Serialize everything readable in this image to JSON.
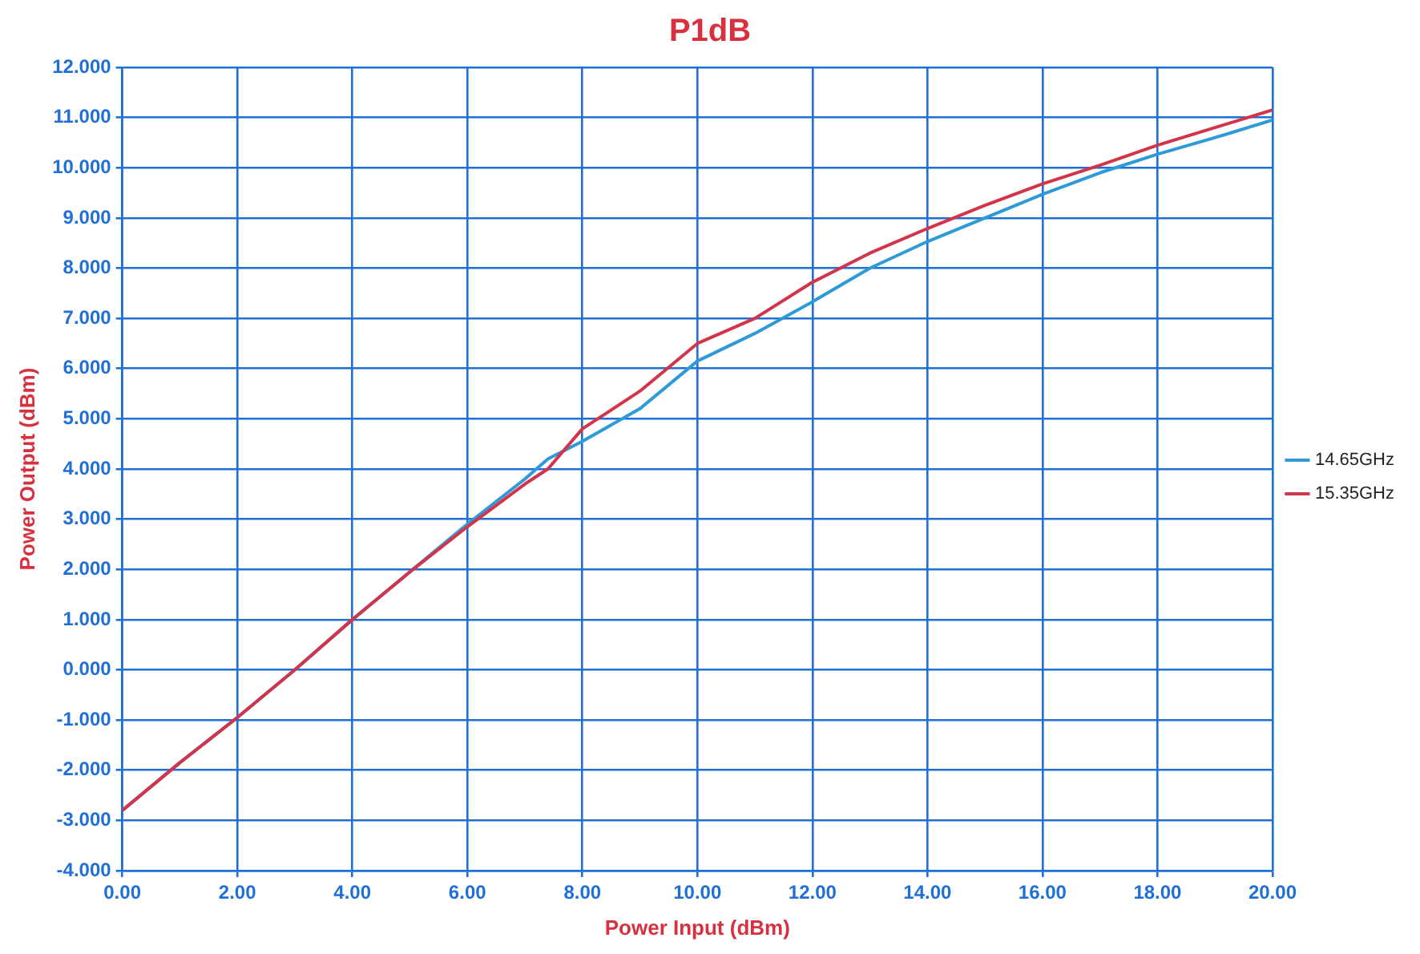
{
  "chart_data": {
    "type": "line",
    "title": "P1dB",
    "xlabel": "Power Input (dBm)",
    "ylabel": "Power Output (dBm)",
    "x": [
      0,
      1,
      2,
      3,
      4,
      5,
      6,
      7,
      7.4,
      8,
      9,
      10,
      11,
      12,
      13,
      14,
      15,
      16,
      17,
      18,
      19,
      20
    ],
    "series": [
      {
        "name": "14.65GHz",
        "color": "#2e9ad8",
        "values": [
          -2.8,
          -1.85,
          -0.95,
          0,
          1.0,
          1.95,
          2.9,
          3.8,
          4.2,
          4.55,
          5.2,
          6.15,
          6.7,
          7.33,
          8.0,
          8.53,
          9.0,
          9.47,
          9.9,
          10.27,
          10.6,
          10.95
        ]
      },
      {
        "name": "15.35GHz",
        "color": "#d2344a",
        "values": [
          -2.8,
          -1.85,
          -0.95,
          0,
          1.0,
          1.95,
          2.85,
          3.7,
          4.0,
          4.8,
          5.55,
          6.5,
          7.0,
          7.72,
          8.3,
          8.79,
          9.25,
          9.68,
          10.05,
          10.45,
          10.8,
          11.15
        ]
      }
    ],
    "xlim": [
      0,
      20
    ],
    "xticks": [
      {
        "value": 0,
        "label": "0.00"
      },
      {
        "value": 2,
        "label": "2.00"
      },
      {
        "value": 4,
        "label": "4.00"
      },
      {
        "value": 6,
        "label": "6.00"
      },
      {
        "value": 8,
        "label": "8.00"
      },
      {
        "value": 10,
        "label": "10.00"
      },
      {
        "value": 12,
        "label": "12.00"
      },
      {
        "value": 14,
        "label": "14.00"
      },
      {
        "value": 16,
        "label": "16.00"
      },
      {
        "value": 18,
        "label": "18.00"
      },
      {
        "value": 20,
        "label": "20.00"
      }
    ],
    "ylim": [
      -4,
      12
    ],
    "yticks": [
      {
        "value": -4,
        "label": "-4.000"
      },
      {
        "value": -3,
        "label": "-3.000"
      },
      {
        "value": -2,
        "label": "-2.000"
      },
      {
        "value": -1,
        "label": "-1.000"
      },
      {
        "value": 0,
        "label": "0.000"
      },
      {
        "value": 1,
        "label": "1.000"
      },
      {
        "value": 2,
        "label": "2.000"
      },
      {
        "value": 3,
        "label": "3.000"
      },
      {
        "value": 4,
        "label": "4.000"
      },
      {
        "value": 5,
        "label": "5.000"
      },
      {
        "value": 6,
        "label": "6.000"
      },
      {
        "value": 7,
        "label": "7.000"
      },
      {
        "value": 8,
        "label": "8.000"
      },
      {
        "value": 9,
        "label": "9.000"
      },
      {
        "value": 10,
        "label": "10.000"
      },
      {
        "value": 11,
        "label": "11.000"
      },
      {
        "value": 12,
        "label": "12.000"
      }
    ],
    "grid": true,
    "legend": "right",
    "marker": "none",
    "line_style": "solid"
  }
}
